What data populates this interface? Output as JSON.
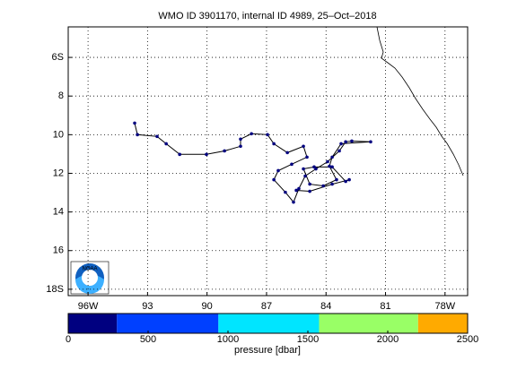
{
  "chart_data": {
    "type": "map",
    "title": "WMO ID 3901170, internal ID 4989, 25–Oct–2018",
    "logo": "NOAA",
    "xlim": [
      -97.0,
      -76.86
    ],
    "ylim": [
      -18.33,
      -4.42
    ],
    "xticks": [
      {
        "value": -96,
        "label": "96W"
      },
      {
        "value": -93,
        "label": "93"
      },
      {
        "value": -90,
        "label": "90"
      },
      {
        "value": -87,
        "label": "87"
      },
      {
        "value": -84,
        "label": "84"
      },
      {
        "value": -81,
        "label": "81"
      },
      {
        "value": -78,
        "label": "78W"
      }
    ],
    "yticks": [
      {
        "value": -6,
        "label": "6S"
      },
      {
        "value": -8,
        "label": "8"
      },
      {
        "value": -10,
        "label": "10"
      },
      {
        "value": -12,
        "label": "12"
      },
      {
        "value": -14,
        "label": "14"
      },
      {
        "value": -16,
        "label": "16"
      },
      {
        "value": -18,
        "label": "18S"
      }
    ],
    "grid": true,
    "track_color": "#000080",
    "x": [
      -93.65,
      -93.51,
      -92.52,
      -92.06,
      -91.38,
      -90.03,
      -89.12,
      -88.31,
      -88.31,
      -87.76,
      -86.95,
      -86.63,
      -85.95,
      -85.14,
      -84.96,
      -85.73,
      -86.41,
      -86.63,
      -86.05,
      -85.64,
      -85.37,
      -85.05,
      -84.51,
      -83.92,
      -83.33,
      -83.01,
      -82.7,
      -81.75,
      -83.24,
      -83.69,
      -83.83,
      -83.47,
      -84.14,
      -84.82,
      -85.14,
      -84.6,
      -83.69,
      -83.01,
      -82.83,
      -83.69,
      -84.82,
      -85.5
    ],
    "y": [
      -9.4,
      -10.0,
      -10.09,
      -10.47,
      -11.02,
      -11.02,
      -10.84,
      -10.6,
      -10.23,
      -9.95,
      -10.0,
      -10.47,
      -10.93,
      -10.6,
      -11.16,
      -11.53,
      -11.86,
      -12.33,
      -12.98,
      -13.49,
      -12.79,
      -12.14,
      -11.77,
      -11.4,
      -10.84,
      -10.37,
      -10.33,
      -10.37,
      -10.47,
      -11.16,
      -11.63,
      -12.33,
      -12.65,
      -12.56,
      -11.77,
      -11.67,
      -11.67,
      -12.42,
      -12.33,
      -12.56,
      -12.93,
      -12.88
    ],
    "colorbar": {
      "label": "pressure [dbar]",
      "bins": [
        0,
        305,
        940,
        1570,
        2190,
        2500
      ],
      "colors": [
        "#000080",
        "#0040ff",
        "#00e5ff",
        "#99ff66",
        "#ffaa00"
      ],
      "xlim": [
        0,
        2500
      ],
      "ticks": [
        0,
        500,
        1000,
        1500,
        2000,
        2500
      ]
    }
  }
}
